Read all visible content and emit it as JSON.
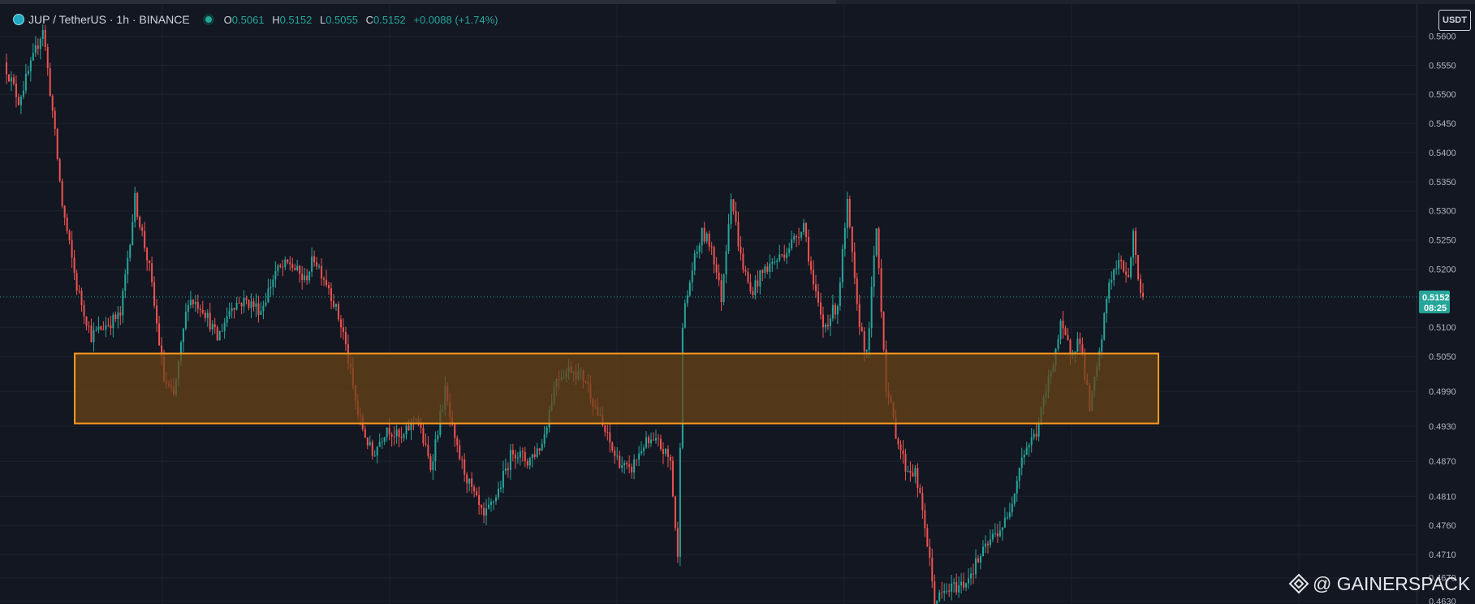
{
  "legend": {
    "symbol": "JUP / TetherUS · 1h · BINANCE",
    "o_key": "O",
    "o_val": "0.5061",
    "h_key": "H",
    "h_val": "0.5152",
    "l_key": "L",
    "l_val": "0.5055",
    "c_key": "C",
    "c_val": "0.5152",
    "change": "+0.0088 (+1.74%)"
  },
  "currency_button": "USDT",
  "current_price": {
    "value": "0.5152",
    "countdown": "08:25"
  },
  "watermark": "@ GAINERSPACK",
  "colors": {
    "background": "#131722",
    "up": "#26a69a",
    "down": "#ef5350",
    "zone_fill": "#6b4416",
    "zone_border": "#ff9a1f",
    "grid": "#1e222d",
    "axis_text": "#b2b5be"
  },
  "chart_data": {
    "type": "candlestick",
    "symbol": "JUP / TetherUS",
    "interval": "1h",
    "exchange": "BINANCE",
    "y_ticks": [
      "0.5600",
      "0.5550",
      "0.5500",
      "0.5450",
      "0.5400",
      "0.5350",
      "0.5300",
      "0.5250",
      "0.5200",
      "0.5100",
      "0.5050",
      "0.4990",
      "0.4930",
      "0.4870",
      "0.4810",
      "0.4760",
      "0.4710",
      "0.4670",
      "0.4630"
    ],
    "ylim": [
      0.4625,
      0.5655
    ],
    "grid": true,
    "last_price": 0.5152,
    "support_zone": {
      "low": 0.4935,
      "high": 0.5055,
      "label": ""
    },
    "waypoints": [
      [
        0,
        0.5555
      ],
      [
        6,
        0.549
      ],
      [
        12,
        0.556
      ],
      [
        16,
        0.5615
      ],
      [
        20,
        0.547
      ],
      [
        24,
        0.531
      ],
      [
        30,
        0.517
      ],
      [
        36,
        0.5085
      ],
      [
        42,
        0.5105
      ],
      [
        48,
        0.512
      ],
      [
        54,
        0.532
      ],
      [
        60,
        0.52
      ],
      [
        66,
        0.501
      ],
      [
        70,
        0.498
      ],
      [
        76,
        0.515
      ],
      [
        82,
        0.5135
      ],
      [
        88,
        0.508
      ],
      [
        94,
        0.514
      ],
      [
        100,
        0.5145
      ],
      [
        106,
        0.513
      ],
      [
        112,
        0.5195
      ],
      [
        118,
        0.521
      ],
      [
        124,
        0.518
      ],
      [
        128,
        0.522
      ],
      [
        134,
        0.517
      ],
      [
        140,
        0.509
      ],
      [
        146,
        0.495
      ],
      [
        152,
        0.488
      ],
      [
        158,
        0.493
      ],
      [
        164,
        0.4905
      ],
      [
        170,
        0.495
      ],
      [
        176,
        0.486
      ],
      [
        182,
        0.499
      ],
      [
        186,
        0.49
      ],
      [
        192,
        0.483
      ],
      [
        198,
        0.477
      ],
      [
        204,
        0.482
      ],
      [
        210,
        0.489
      ],
      [
        216,
        0.487
      ],
      [
        222,
        0.49
      ],
      [
        228,
        0.5015
      ],
      [
        234,
        0.503
      ],
      [
        240,
        0.501
      ],
      [
        246,
        0.494
      ],
      [
        252,
        0.488
      ],
      [
        258,
        0.485
      ],
      [
        264,
        0.49
      ],
      [
        270,
        0.49
      ],
      [
        275,
        0.487
      ],
      [
        278,
        0.47
      ],
      [
        280,
        0.511
      ],
      [
        284,
        0.52
      ],
      [
        288,
        0.526
      ],
      [
        292,
        0.524
      ],
      [
        296,
        0.515
      ],
      [
        300,
        0.533
      ],
      [
        304,
        0.522
      ],
      [
        308,
        0.516
      ],
      [
        314,
        0.52
      ],
      [
        320,
        0.522
      ],
      [
        326,
        0.525
      ],
      [
        330,
        0.528
      ],
      [
        334,
        0.517
      ],
      [
        338,
        0.51
      ],
      [
        344,
        0.514
      ],
      [
        348,
        0.531
      ],
      [
        352,
        0.513
      ],
      [
        356,
        0.505
      ],
      [
        360,
        0.527
      ],
      [
        364,
        0.5
      ],
      [
        368,
        0.492
      ],
      [
        372,
        0.486
      ],
      [
        376,
        0.485
      ],
      [
        380,
        0.476
      ],
      [
        384,
        0.463
      ],
      [
        390,
        0.465
      ],
      [
        396,
        0.466
      ],
      [
        402,
        0.47
      ],
      [
        408,
        0.474
      ],
      [
        414,
        0.477
      ],
      [
        420,
        0.488
      ],
      [
        426,
        0.492
      ],
      [
        430,
        0.499
      ],
      [
        436,
        0.51
      ],
      [
        440,
        0.506
      ],
      [
        444,
        0.508
      ],
      [
        448,
        0.496
      ],
      [
        452,
        0.505
      ],
      [
        456,
        0.518
      ],
      [
        460,
        0.521
      ],
      [
        464,
        0.519
      ],
      [
        466,
        0.526
      ],
      [
        469,
        0.5152
      ]
    ]
  }
}
